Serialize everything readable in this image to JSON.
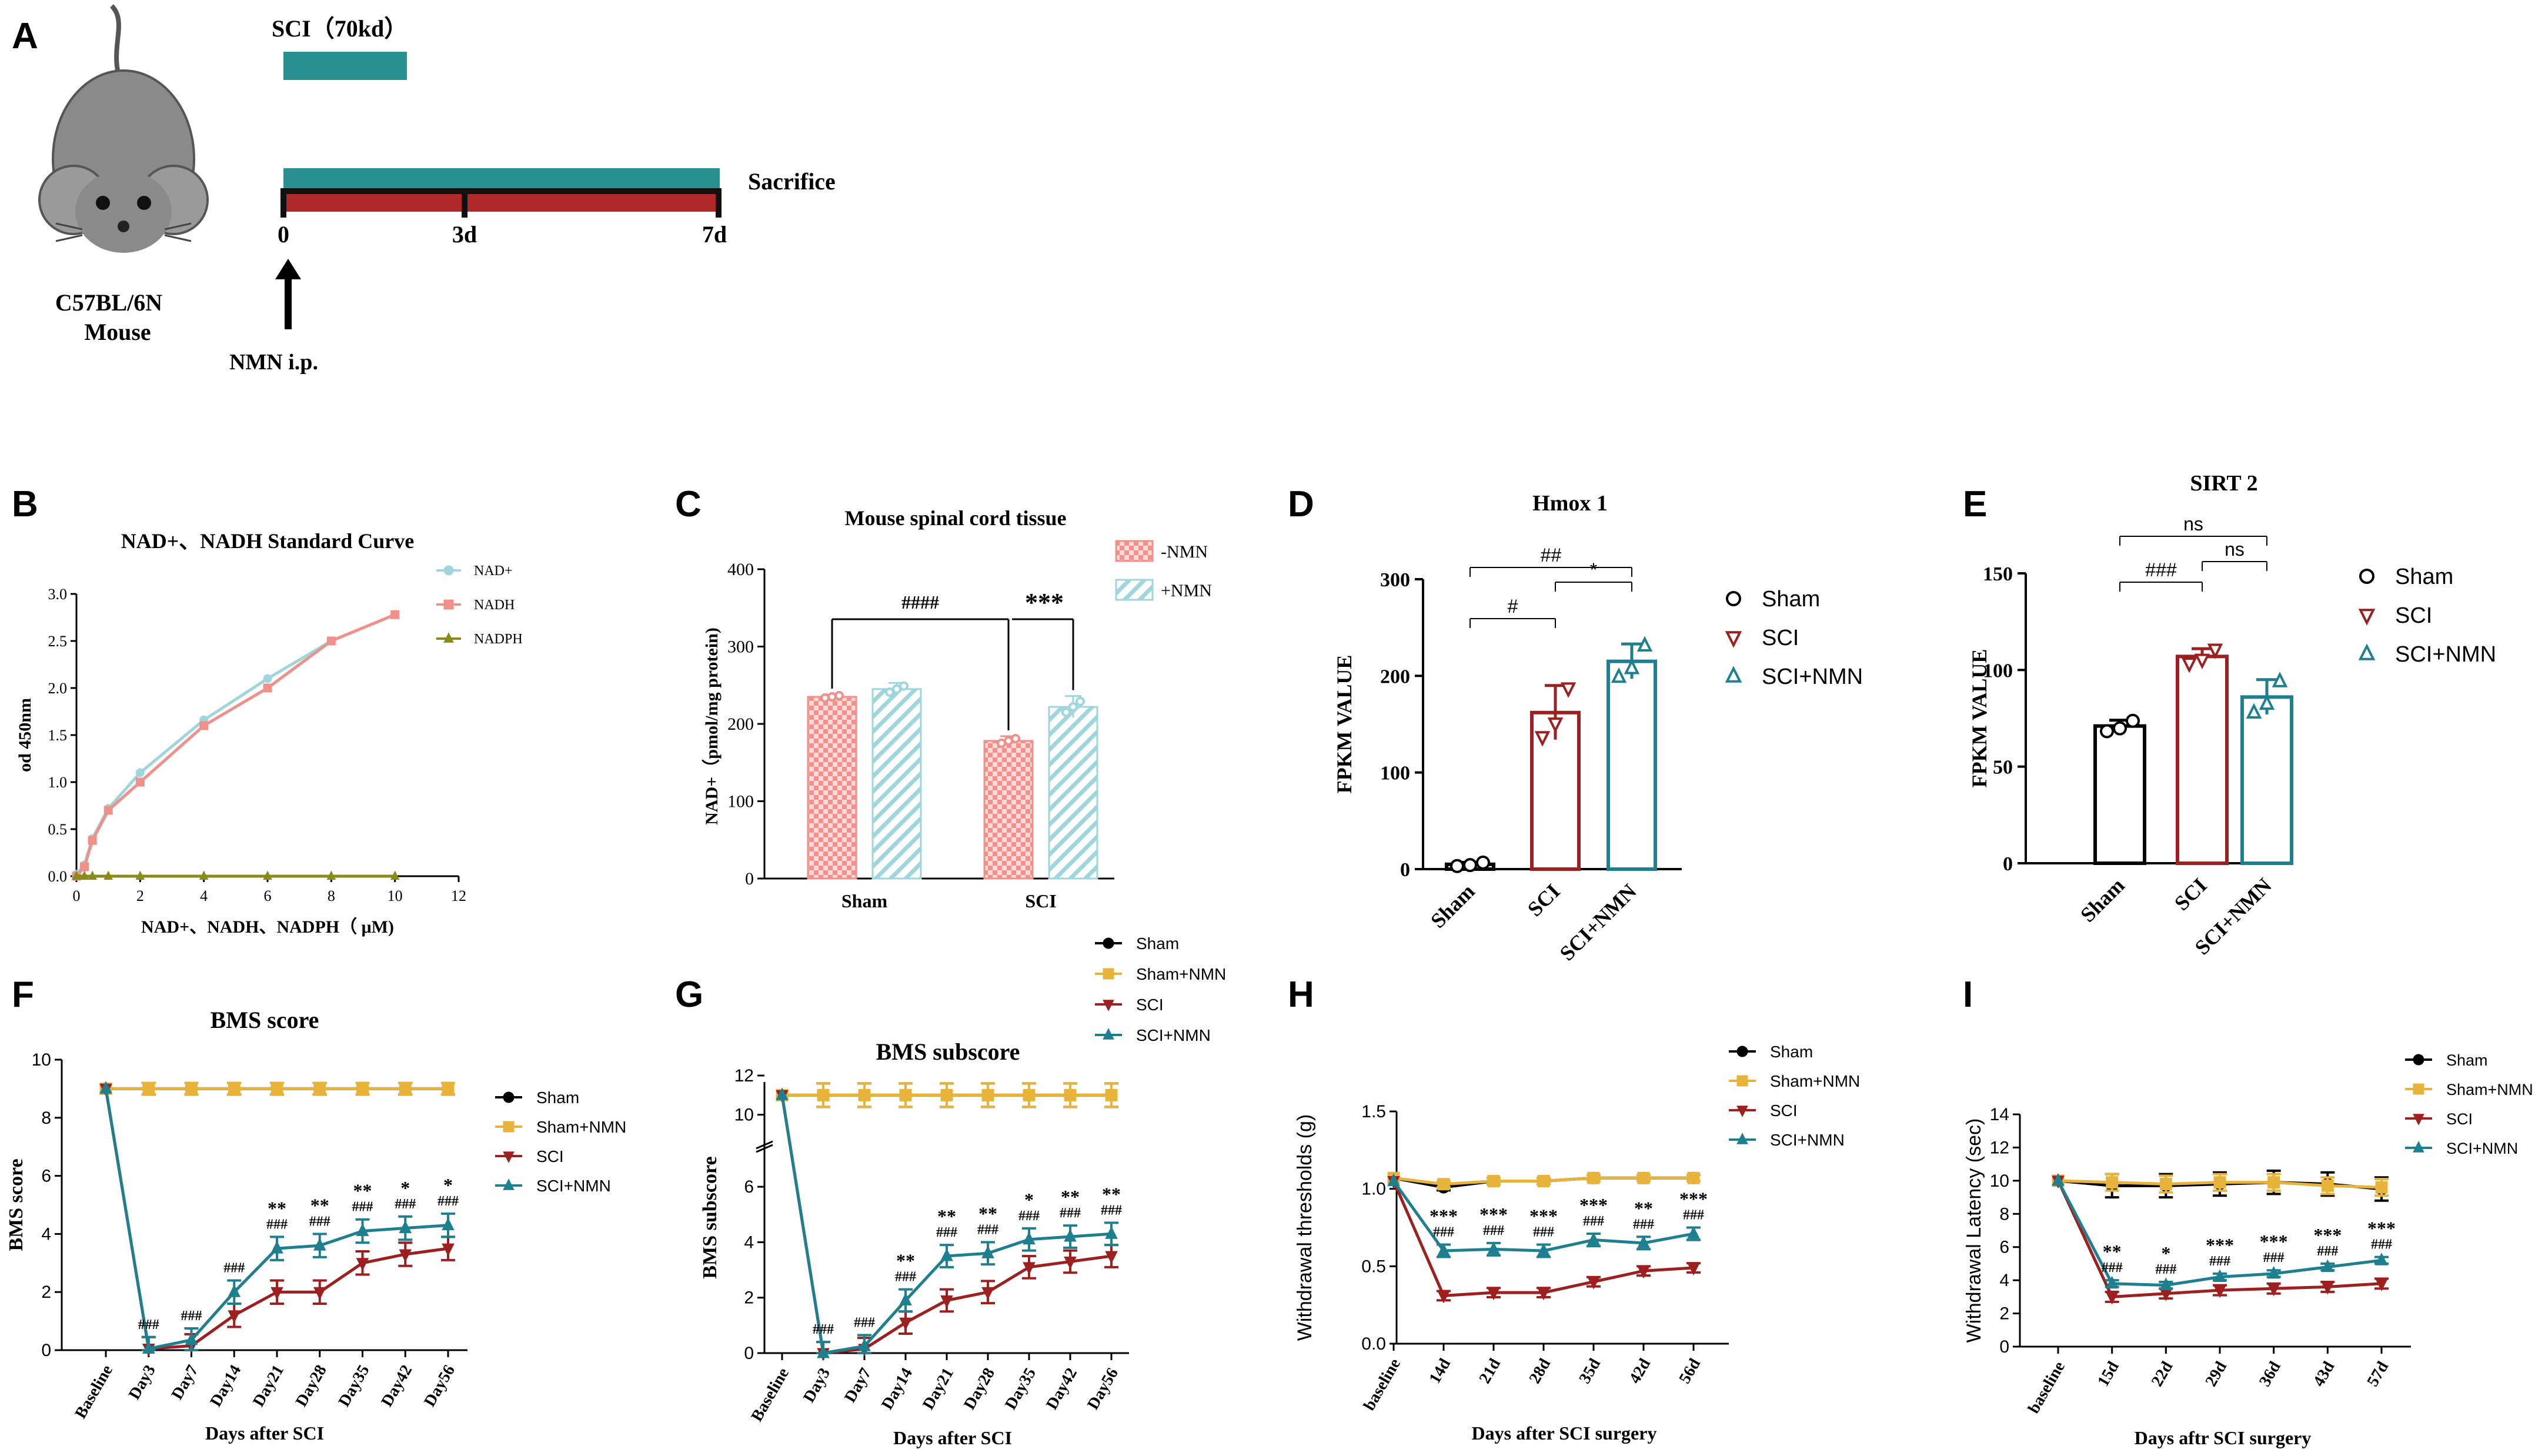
{
  "colors": {
    "black": "#000000",
    "gold": "#e8b33a",
    "red": "#9e1f1f",
    "teal": "#1e7f8f",
    "teal_light": "#9fd6dc",
    "salmon": "#f0908a",
    "olive": "#8a8a1a",
    "timeline_teal": "#2a8f8f"
  },
  "panelA": {
    "letter": "A",
    "sci_label": "SCI（70kd）",
    "sacrifice": "Sacrifice",
    "t0": "0",
    "t3": "3d",
    "t7": "7d",
    "mouse_strain": "C57BL/6N",
    "mouse_label": "Mouse",
    "injection": "NMN  i.p."
  },
  "chart_data": [
    {
      "id": "B",
      "type": "line",
      "title": "NAD+、NADH  Standard Curve",
      "xlabel": "NAD+、NADH、NADPH（ μM)",
      "ylabel": "od  450nm",
      "xlim": [
        0,
        12
      ],
      "ylim": [
        0,
        3.0
      ],
      "xticks": [
        "0",
        "2",
        "4",
        "6",
        "8",
        "10",
        "12"
      ],
      "yticks": [
        "0.0",
        "0.5",
        "1.0",
        "1.5",
        "2.0",
        "2.5",
        "3.0"
      ],
      "legend_position": "top-right",
      "series": [
        {
          "name": "NAD+",
          "x": [
            0,
            0.25,
            0.5,
            1,
            2,
            4,
            6,
            8,
            10
          ],
          "y": [
            0.02,
            0.12,
            0.4,
            0.72,
            1.1,
            1.66,
            2.1,
            2.5,
            2.78
          ]
        },
        {
          "name": "NADH",
          "x": [
            0,
            0.25,
            0.5,
            1,
            2,
            4,
            6,
            8,
            10
          ],
          "y": [
            0.0,
            0.1,
            0.38,
            0.7,
            1.0,
            1.6,
            2.0,
            2.5,
            2.78
          ]
        },
        {
          "name": "NADPH",
          "x": [
            0,
            0.25,
            0.5,
            1,
            2,
            4,
            6,
            8,
            10
          ],
          "y": [
            0,
            0,
            0,
            0,
            0,
            0,
            0,
            0,
            0
          ]
        }
      ]
    },
    {
      "id": "C",
      "type": "bar",
      "title": "Mouse spinal cord tissue",
      "ylabel": "NAD+（pmol/mg protein)",
      "categories": [
        "Sham",
        "SCI"
      ],
      "ylim": [
        0,
        400
      ],
      "yticks": [
        "0",
        "100",
        "200",
        "300",
        "400"
      ],
      "series": [
        {
          "name": "-NMN",
          "values": [
            235,
            178
          ],
          "errors": [
            3,
            6
          ]
        },
        {
          "name": "+NMN",
          "values": [
            245,
            222
          ],
          "errors": [
            8,
            14
          ]
        }
      ],
      "annotations": [
        {
          "label": "####",
          "between": "Sham -NMN vs SCI -NMN"
        },
        {
          "label": "***",
          "between": "SCI -NMN vs SCI +NMN"
        }
      ]
    },
    {
      "id": "D",
      "type": "bar",
      "title": "Hmox 1",
      "ylabel": "FPKM VALUE",
      "categories": [
        "Sham",
        "SCI",
        "SCI+NMN"
      ],
      "values": [
        5,
        162,
        215
      ],
      "errors": [
        2,
        28,
        18
      ],
      "ylim": [
        0,
        300
      ],
      "yticks": [
        "0",
        "100",
        "200",
        "300"
      ],
      "legend": [
        "Sham",
        "SCI",
        "SCI+NMN"
      ],
      "legend_position": "right",
      "annotations": [
        {
          "label": "#",
          "pair": [
            0,
            1
          ]
        },
        {
          "label": "*",
          "pair": [
            1,
            2
          ]
        },
        {
          "label": "##",
          "pair": [
            0,
            2
          ]
        }
      ]
    },
    {
      "id": "E",
      "type": "bar",
      "title": "SIRT 2",
      "ylabel": "FPKM VALUE",
      "categories": [
        "Sham",
        "SCI",
        "SCI+NMN"
      ],
      "values": [
        71,
        107,
        86
      ],
      "errors": [
        3,
        4,
        9
      ],
      "ylim": [
        0,
        150
      ],
      "yticks": [
        "0",
        "50",
        "100",
        "150"
      ],
      "legend": [
        "Sham",
        "SCI",
        "SCI+NMN"
      ],
      "legend_position": "right",
      "annotations": [
        {
          "label": "###",
          "pair": [
            0,
            1
          ]
        },
        {
          "label": "ns",
          "pair": [
            1,
            2
          ]
        },
        {
          "label": "ns",
          "pair": [
            0,
            2
          ]
        }
      ]
    },
    {
      "id": "F",
      "type": "line",
      "title": "BMS score",
      "xlabel": "Days after SCI",
      "ylabel": "BMS score",
      "categories": [
        "Baseline",
        "Day3",
        "Day7",
        "Day14",
        "Day21",
        "Day28",
        "Day35",
        "Day42",
        "Day56"
      ],
      "ylim": [
        0,
        10
      ],
      "yticks": [
        "0",
        "2",
        "4",
        "6",
        "8",
        "10"
      ],
      "legend_position": "right",
      "series": [
        {
          "name": "Sham",
          "values": [
            9,
            9,
            9,
            9,
            9,
            9,
            9,
            9,
            9
          ]
        },
        {
          "name": "Sham+NMN",
          "values": [
            9,
            9,
            9,
            9,
            9,
            9,
            9,
            9,
            9
          ]
        },
        {
          "name": "SCI",
          "values": [
            9,
            0.05,
            0.15,
            1.2,
            2.0,
            2.0,
            3.0,
            3.3,
            3.5
          ]
        },
        {
          "name": "SCI+NMN",
          "values": [
            9,
            0.05,
            0.35,
            2.0,
            3.5,
            3.6,
            4.1,
            4.2,
            4.3
          ]
        }
      ],
      "sig_top": [
        "",
        "",
        "",
        "",
        "**",
        "**",
        "**",
        "*",
        "*"
      ],
      "sig_bottom": [
        "",
        "###",
        "###",
        "###",
        "###",
        "###",
        "###",
        "###",
        "###"
      ]
    },
    {
      "id": "G",
      "type": "line",
      "title": "BMS subscore",
      "xlabel": "Days after SCI",
      "ylabel": "BMS subscore",
      "categories": [
        "Baseline",
        "Day3",
        "Day7",
        "Day14",
        "Day21",
        "Day28",
        "Day35",
        "Day42",
        "Day56"
      ],
      "ylim": [
        0,
        12
      ],
      "axis_break": [
        7,
        9
      ],
      "yticks": [
        "0",
        "2",
        "4",
        "6",
        "10",
        "12"
      ],
      "legend_position": "top",
      "series": [
        {
          "name": "Sham",
          "values": [
            11,
            11,
            11,
            11,
            11,
            11,
            11,
            11,
            11
          ]
        },
        {
          "name": "Sham+NMN",
          "values": [
            11,
            11,
            11,
            11,
            11,
            11,
            11,
            11,
            11
          ]
        },
        {
          "name": "SCI",
          "values": [
            11,
            0,
            0.15,
            1.1,
            1.9,
            2.2,
            3.1,
            3.3,
            3.5
          ]
        },
        {
          "name": "SCI+NMN",
          "values": [
            11,
            0,
            0.25,
            1.9,
            3.5,
            3.6,
            4.1,
            4.2,
            4.3
          ]
        }
      ],
      "sig_top": [
        "",
        "",
        "",
        "**",
        "**",
        "**",
        "*",
        "**",
        "**"
      ],
      "sig_bottom": [
        "",
        "###",
        "###",
        "###",
        "###",
        "###",
        "###",
        "###",
        "###"
      ]
    },
    {
      "id": "H",
      "type": "line",
      "title": "",
      "xlabel": "Days after SCI surgery",
      "ylabel": "Withdrawal thresholds (g)",
      "categories": [
        "baseline",
        "14d",
        "21d",
        "28d",
        "35d",
        "42d",
        "56d"
      ],
      "ylim": [
        0,
        1.5
      ],
      "yticks": [
        "0.0",
        "0.5",
        "1.0",
        "1.5"
      ],
      "legend_position": "top-right",
      "series": [
        {
          "name": "Sham",
          "values": [
            1.07,
            1.01,
            1.05,
            1.05,
            1.07,
            1.07,
            1.07
          ]
        },
        {
          "name": "Sham+NMN",
          "values": [
            1.07,
            1.03,
            1.05,
            1.05,
            1.07,
            1.07,
            1.07
          ]
        },
        {
          "name": "SCI",
          "values": [
            1.05,
            0.31,
            0.33,
            0.33,
            0.4,
            0.47,
            0.49
          ]
        },
        {
          "name": "SCI+NMN",
          "values": [
            1.05,
            0.6,
            0.61,
            0.6,
            0.67,
            0.65,
            0.71
          ]
        }
      ],
      "sig_top": [
        "",
        "***",
        "***",
        "***",
        "***",
        "**",
        "***"
      ],
      "sig_bottom": [
        "",
        "###",
        "###",
        "###",
        "###",
        "###",
        "###"
      ]
    },
    {
      "id": "I",
      "type": "line",
      "title": "",
      "xlabel": "Days aftr SCI surgery",
      "ylabel": "Withdrawal Latency (sec)",
      "categories": [
        "baseline",
        "15d",
        "22d",
        "29d",
        "36d",
        "43d",
        "57d"
      ],
      "ylim": [
        0,
        14
      ],
      "yticks": [
        "0",
        "2",
        "4",
        "6",
        "8",
        "10",
        "12",
        "14"
      ],
      "legend_position": "top-right",
      "series": [
        {
          "name": "Sham",
          "values": [
            10.0,
            9.7,
            9.7,
            9.8,
            9.9,
            9.8,
            9.5
          ]
        },
        {
          "name": "Sham+NMN",
          "values": [
            10.0,
            9.9,
            9.8,
            9.9,
            9.9,
            9.7,
            9.6
          ]
        },
        {
          "name": "SCI",
          "values": [
            10.0,
            3.0,
            3.2,
            3.4,
            3.5,
            3.6,
            3.8
          ]
        },
        {
          "name": "SCI+NMN",
          "values": [
            10.0,
            3.8,
            3.7,
            4.2,
            4.4,
            4.8,
            5.2
          ]
        }
      ],
      "sig_top": [
        "",
        "**",
        "*",
        "***",
        "***",
        "***",
        "***"
      ],
      "sig_bottom": [
        "",
        "###",
        "###",
        "###",
        "###",
        "###",
        "###"
      ]
    }
  ]
}
